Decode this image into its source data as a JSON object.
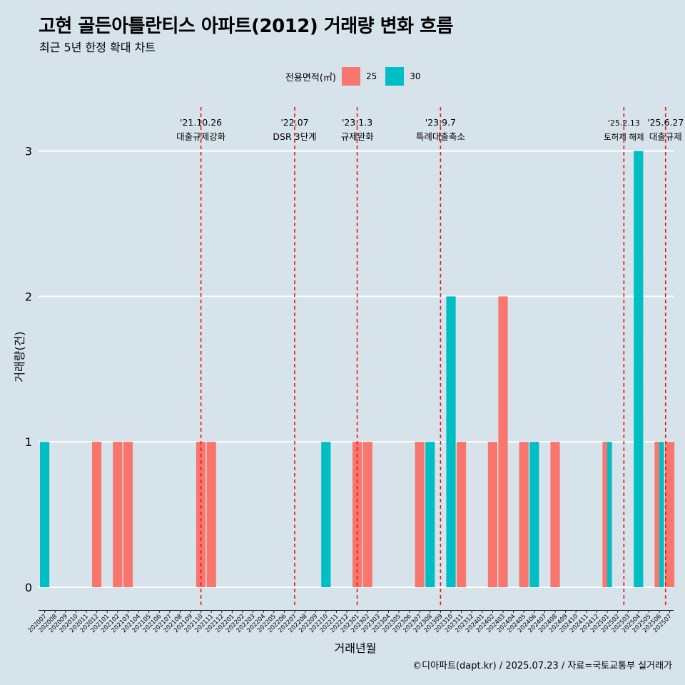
{
  "title": "고현 골든아틀란티스 아파트(2012) 거래량 변화 흐름",
  "subtitle": "최근 5년 한정 확대 차트",
  "legend": {
    "title": "전용면적(㎡)",
    "items": [
      {
        "label": "25",
        "color": "#f8766d"
      },
      {
        "label": "30",
        "color": "#00bfc4"
      }
    ]
  },
  "caption": "©디아파트(dapt.kr) / 2025.07.23 / 자료=국토교통부 실거래가",
  "colors": {
    "background": "#d6e3ea",
    "grid": "#ffffff",
    "event_line": "#ee1111"
  },
  "chart_data": {
    "type": "bar",
    "title": "고현 골든아틀란티스 아파트(2012) 거래량 변화 흐름",
    "subtitle": "최근 5년 한정 확대 차트",
    "xlabel": "거래년월",
    "ylabel": "거래량(건)",
    "ylim": [
      0,
      3
    ],
    "yticks": [
      0,
      1,
      2,
      3
    ],
    "grid": true,
    "legend_position": "top",
    "categories": [
      "202007",
      "202008",
      "202009",
      "202010",
      "202011",
      "202012",
      "202101",
      "202102",
      "202103",
      "202104",
      "202105",
      "202106",
      "202107",
      "202108",
      "202109",
      "202110",
      "202111",
      "202112",
      "202201",
      "202202",
      "202203",
      "202204",
      "202205",
      "202206",
      "202207",
      "202208",
      "202209",
      "202210",
      "202211",
      "202212",
      "202301",
      "202302",
      "202303",
      "202304",
      "202305",
      "202306",
      "202307",
      "202308",
      "202309",
      "202310",
      "202311",
      "202312",
      "202401",
      "202402",
      "202403",
      "202404",
      "202405",
      "202406",
      "202407",
      "202408",
      "202409",
      "202410",
      "202411",
      "202412",
      "202501",
      "202502",
      "202503",
      "202504",
      "202505",
      "202506",
      "202507"
    ],
    "bars": [
      {
        "month": "202007",
        "series": "30",
        "value": 1,
        "slot": 0,
        "slots": 1
      },
      {
        "month": "202012",
        "series": "25",
        "value": 1,
        "slot": 0,
        "slots": 1
      },
      {
        "month": "202102",
        "series": "25",
        "value": 1,
        "slot": 0,
        "slots": 1
      },
      {
        "month": "202103",
        "series": "25",
        "value": 1,
        "slot": 0,
        "slots": 1
      },
      {
        "month": "202110",
        "series": "25",
        "value": 1,
        "slot": 0,
        "slots": 1
      },
      {
        "month": "202111",
        "series": "25",
        "value": 1,
        "slot": 0,
        "slots": 1
      },
      {
        "month": "202210",
        "series": "30",
        "value": 1,
        "slot": 0,
        "slots": 1
      },
      {
        "month": "202301",
        "series": "25",
        "value": 1,
        "slot": 0,
        "slots": 1
      },
      {
        "month": "202302",
        "series": "25",
        "value": 1,
        "slot": 0,
        "slots": 1
      },
      {
        "month": "202307",
        "series": "25",
        "value": 1,
        "slot": 0,
        "slots": 1
      },
      {
        "month": "202308",
        "series": "30",
        "value": 1,
        "slot": 0,
        "slots": 1
      },
      {
        "month": "202310",
        "series": "30",
        "value": 2,
        "slot": 0,
        "slots": 1
      },
      {
        "month": "202311",
        "series": "25",
        "value": 1,
        "slot": 0,
        "slots": 1
      },
      {
        "month": "202402",
        "series": "25",
        "value": 1,
        "slot": 0,
        "slots": 1
      },
      {
        "month": "202403",
        "series": "25",
        "value": 2,
        "slot": 0,
        "slots": 1
      },
      {
        "month": "202405",
        "series": "25",
        "value": 1,
        "slot": 0,
        "slots": 1
      },
      {
        "month": "202406",
        "series": "30",
        "value": 1,
        "slot": 0,
        "slots": 1
      },
      {
        "month": "202408",
        "series": "25",
        "value": 1,
        "slot": 0,
        "slots": 1
      },
      {
        "month": "202501",
        "series": "25",
        "value": 1,
        "slot": 0,
        "slots": 2
      },
      {
        "month": "202501",
        "series": "30",
        "value": 1,
        "slot": 1,
        "slots": 2
      },
      {
        "month": "202504",
        "series": "30",
        "value": 3,
        "slot": 0,
        "slots": 1
      },
      {
        "month": "202506",
        "series": "25",
        "value": 1,
        "slot": 0,
        "slots": 2
      },
      {
        "month": "202506",
        "series": "30",
        "value": 1,
        "slot": 1,
        "slots": 2
      },
      {
        "month": "202507",
        "series": "25",
        "value": 1,
        "slot": 0,
        "slots": 1
      }
    ],
    "events": [
      {
        "position": 15,
        "date": "'21.10.26",
        "label": "대출규제강화"
      },
      {
        "position": 24,
        "date": "'22.07",
        "label": "DSR 3단계"
      },
      {
        "position": 30,
        "date": "'23.1.3",
        "label": "규제완화"
      },
      {
        "position": 38,
        "date": "'23.9.7",
        "label": "특례대출축소"
      },
      {
        "position": 55.6,
        "date": "'25.2.13",
        "label": "토허제 해제"
      },
      {
        "position": 59.6,
        "date": "'25.6.27",
        "label": "대출규제"
      }
    ]
  }
}
